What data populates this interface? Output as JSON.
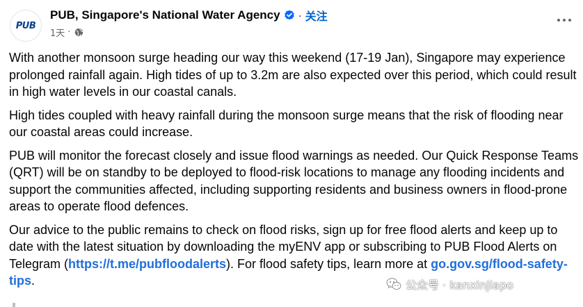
{
  "page": {
    "name": "PUB, Singapore's National Water Agency",
    "separator": "·",
    "follow_label": "关注",
    "timestamp": "1天",
    "privacy_dot": "·",
    "avatar_logo_text": "PUB",
    "verified_icon": "verified-badge-icon",
    "globe_icon": "globe-icon",
    "more_icon": "more-options-icon"
  },
  "post": {
    "p1": "With another monsoon surge heading our way this weekend (17-19 Jan), Singapore may experience prolonged rainfall again. High tides of up to 3.2m are also expected over this period, which could result in high water levels in our coastal canals.",
    "p2": "High tides coupled with heavy rainfall during the monsoon surge means that the risk of flooding near our coastal areas could increase.",
    "p3": "PUB will monitor the forecast closely and issue flood warnings as needed. Our Quick Response Teams (QRT) will be on standby to be deployed to flood-risk locations to manage any flooding incidents and support the communities affected, including supporting residents and business owners in flood-prone areas to operate flood defences.",
    "p4_part1": "Our advice to the public remains to check on flood risks, sign up for free flood alerts and keep up to date with the latest situation by downloading the myENV app or subscribing to PUB Flood Alerts on Telegram (",
    "p4_link1": "https://t.me/pubfloodalerts",
    "p4_part2": "). For flood safety tips, learn more at ",
    "p4_link2": "go.gov.sg/flood-safety-tips",
    "p4_part3": "."
  },
  "watermark": {
    "text": "公众号 · kanxinjiapo",
    "icon": "wechat-icon"
  },
  "colors": {
    "link": "#216fdb",
    "follow": "#0064d1",
    "verified": "#0866ff",
    "meta": "#65676b",
    "text": "#050505"
  }
}
